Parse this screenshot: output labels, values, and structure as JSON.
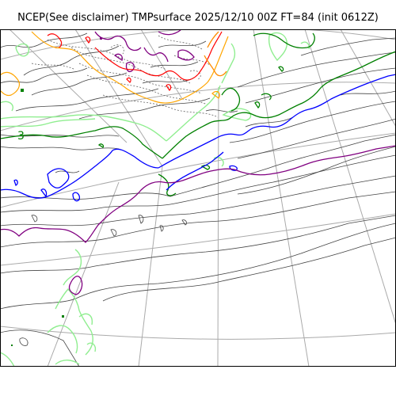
{
  "title": "NCEP(See disclaimer) TMPsurface 2025/12/10 00Z FT=84 (init 0612Z)",
  "contour_labels": {
    "label_3": "3"
  },
  "colors": {
    "graticule": "#aaaaaa",
    "gray_contour": "#444444",
    "light_green": "#90ee90",
    "green": "#008000",
    "blue": "#0000ff",
    "purple": "#800080",
    "red": "#ff0000",
    "orange": "#ffa500",
    "dark_orange": "#ff8c00",
    "background": "#ffffff",
    "frame": "#000000"
  }
}
